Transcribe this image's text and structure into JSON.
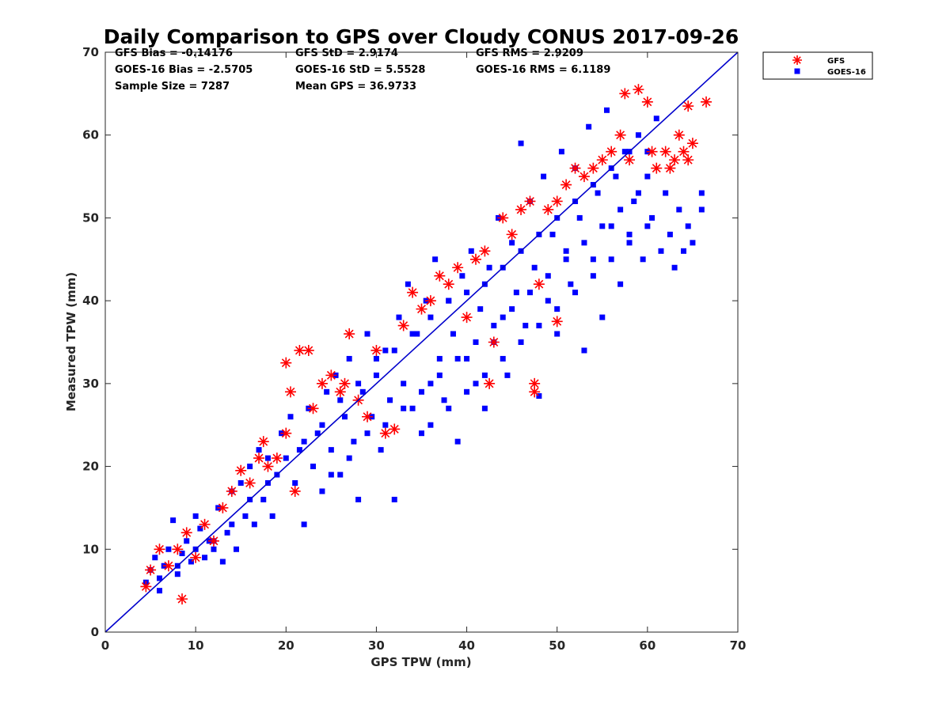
{
  "chart_data": {
    "type": "scatter",
    "title": "Daily Comparison to GPS over Cloudy CONUS 2017-09-26",
    "xlabel": "GPS TPW (mm)",
    "ylabel": "Measured TPW (mm)",
    "xlim": [
      0,
      70
    ],
    "ylim": [
      0,
      70
    ],
    "xticks": [
      "0",
      "10",
      "20",
      "30",
      "40",
      "50",
      "60",
      "70"
    ],
    "yticks": [
      "0",
      "10",
      "20",
      "30",
      "40",
      "50",
      "60",
      "70"
    ],
    "grid": false,
    "legend_position": "outside-top-right",
    "reference_line": {
      "from": [
        0,
        0
      ],
      "to": [
        70,
        70
      ],
      "color": "#0000cc"
    },
    "stats": [
      [
        "GFS Bias = -0.14176",
        "GFS StD = 2.9174",
        "GFS RMS = 2.9209"
      ],
      [
        "GOES-16 Bias = -2.5705",
        "GOES-16 StD = 5.5528",
        "GOES-16 RMS = 6.1189"
      ],
      [
        "Sample Size = 7287",
        "Mean GPS = 36.9733"
      ]
    ],
    "series": [
      {
        "name": "GOES-16",
        "marker": "square",
        "color": "#0000ff",
        "points": [
          [
            4.5,
            6
          ],
          [
            5,
            7.5
          ],
          [
            5.5,
            9
          ],
          [
            6,
            6.5
          ],
          [
            6.5,
            8
          ],
          [
            7,
            10
          ],
          [
            7.5,
            13.5
          ],
          [
            8,
            7
          ],
          [
            8.5,
            9.5
          ],
          [
            9,
            11
          ],
          [
            9.5,
            8.5
          ],
          [
            10,
            14
          ],
          [
            10.5,
            12.5
          ],
          [
            11,
            9
          ],
          [
            11.5,
            11
          ],
          [
            12,
            10
          ],
          [
            12.5,
            15
          ],
          [
            13,
            8.5
          ],
          [
            13.5,
            12
          ],
          [
            14,
            17
          ],
          [
            14.5,
            10
          ],
          [
            15,
            18
          ],
          [
            15.5,
            14
          ],
          [
            16,
            20
          ],
          [
            16.5,
            13
          ],
          [
            17,
            22
          ],
          [
            17.5,
            16
          ],
          [
            18,
            21
          ],
          [
            18.5,
            14
          ],
          [
            19,
            19
          ],
          [
            19.5,
            24
          ],
          [
            20,
            21
          ],
          [
            20.5,
            26
          ],
          [
            21,
            18
          ],
          [
            21.5,
            22
          ],
          [
            22,
            13
          ],
          [
            22.5,
            27
          ],
          [
            23,
            20
          ],
          [
            23.5,
            24
          ],
          [
            24,
            17
          ],
          [
            24.5,
            29
          ],
          [
            25,
            22
          ],
          [
            25.5,
            31
          ],
          [
            26,
            19
          ],
          [
            26.5,
            26
          ],
          [
            27,
            33
          ],
          [
            27.5,
            23
          ],
          [
            28,
            16
          ],
          [
            28.5,
            29
          ],
          [
            29,
            36
          ],
          [
            29.5,
            26
          ],
          [
            30,
            31
          ],
          [
            30.5,
            22
          ],
          [
            31,
            34
          ],
          [
            31.5,
            28
          ],
          [
            32,
            16
          ],
          [
            32.5,
            38
          ],
          [
            33,
            30
          ],
          [
            33.5,
            42
          ],
          [
            34,
            27
          ],
          [
            34.5,
            36
          ],
          [
            35,
            24
          ],
          [
            35.5,
            40
          ],
          [
            36,
            30
          ],
          [
            36.5,
            45
          ],
          [
            37,
            33
          ],
          [
            37.5,
            28
          ],
          [
            38,
            40
          ],
          [
            38.5,
            36
          ],
          [
            39,
            23
          ],
          [
            39.5,
            43
          ],
          [
            40,
            33
          ],
          [
            40.5,
            46
          ],
          [
            41,
            30
          ],
          [
            41.5,
            39
          ],
          [
            42,
            27
          ],
          [
            42.5,
            44
          ],
          [
            43,
            35
          ],
          [
            43.5,
            50
          ],
          [
            44,
            38
          ],
          [
            44.5,
            31
          ],
          [
            45,
            47
          ],
          [
            45.5,
            41
          ],
          [
            46,
            59
          ],
          [
            46.5,
            37
          ],
          [
            47,
            52
          ],
          [
            47.5,
            44
          ],
          [
            48,
            28.5
          ],
          [
            48.5,
            55
          ],
          [
            49,
            40
          ],
          [
            49.5,
            48
          ],
          [
            50,
            36
          ],
          [
            50.5,
            58
          ],
          [
            51,
            46
          ],
          [
            51.5,
            42
          ],
          [
            52,
            56
          ],
          [
            52.5,
            50
          ],
          [
            53,
            34
          ],
          [
            53.5,
            61
          ],
          [
            54,
            45
          ],
          [
            54.5,
            53
          ],
          [
            55,
            38
          ],
          [
            55.5,
            63
          ],
          [
            56,
            49
          ],
          [
            56.5,
            55
          ],
          [
            57,
            42
          ],
          [
            57.5,
            58
          ],
          [
            58,
            48
          ],
          [
            58.5,
            52
          ],
          [
            59,
            60
          ],
          [
            59.5,
            45
          ],
          [
            60,
            55
          ],
          [
            60.5,
            50
          ],
          [
            61,
            62
          ],
          [
            61.5,
            46
          ],
          [
            62,
            53
          ],
          [
            62.5,
            48
          ],
          [
            63,
            44
          ],
          [
            63.5,
            51
          ],
          [
            64,
            46
          ],
          [
            64.5,
            49
          ],
          [
            65,
            47
          ],
          [
            66,
            53
          ],
          [
            66,
            51
          ],
          [
            6,
            5
          ],
          [
            8,
            8
          ],
          [
            10,
            10
          ],
          [
            12,
            11
          ],
          [
            14,
            13
          ],
          [
            16,
            16
          ],
          [
            18,
            18
          ],
          [
            22,
            23
          ],
          [
            24,
            25
          ],
          [
            26,
            28
          ],
          [
            28,
            30
          ],
          [
            30,
            33
          ],
          [
            32,
            34
          ],
          [
            34,
            36
          ],
          [
            36,
            38
          ],
          [
            38,
            40
          ],
          [
            40,
            41
          ],
          [
            42,
            42
          ],
          [
            44,
            44
          ],
          [
            46,
            46
          ],
          [
            48,
            48
          ],
          [
            50,
            50
          ],
          [
            52,
            52
          ],
          [
            54,
            54
          ],
          [
            56,
            56
          ],
          [
            58,
            58
          ],
          [
            60,
            58
          ],
          [
            25,
            19
          ],
          [
            27,
            21
          ],
          [
            29,
            24
          ],
          [
            31,
            25
          ],
          [
            33,
            27
          ],
          [
            35,
            29
          ],
          [
            37,
            31
          ],
          [
            39,
            33
          ],
          [
            41,
            35
          ],
          [
            43,
            37
          ],
          [
            45,
            39
          ],
          [
            47,
            41
          ],
          [
            49,
            43
          ],
          [
            51,
            45
          ],
          [
            53,
            47
          ],
          [
            55,
            49
          ],
          [
            57,
            51
          ],
          [
            59,
            53
          ],
          [
            36,
            25
          ],
          [
            38,
            27
          ],
          [
            40,
            29
          ],
          [
            42,
            31
          ],
          [
            44,
            33
          ],
          [
            46,
            35
          ],
          [
            48,
            37
          ],
          [
            50,
            39
          ],
          [
            52,
            41
          ],
          [
            54,
            43
          ],
          [
            56,
            45
          ],
          [
            58,
            47
          ],
          [
            60,
            49
          ]
        ]
      },
      {
        "name": "GFS",
        "marker": "asterisk",
        "color": "#ff0000",
        "points": [
          [
            4.5,
            5.5
          ],
          [
            5,
            7.5
          ],
          [
            6,
            10
          ],
          [
            7,
            8
          ],
          [
            8,
            10
          ],
          [
            8.5,
            4
          ],
          [
            9,
            12
          ],
          [
            10,
            9
          ],
          [
            11,
            13
          ],
          [
            12,
            11
          ],
          [
            13,
            15
          ],
          [
            14,
            17
          ],
          [
            15,
            19.5
          ],
          [
            16,
            18
          ],
          [
            17,
            21
          ],
          [
            17.5,
            23
          ],
          [
            18,
            20
          ],
          [
            19,
            21
          ],
          [
            20,
            32.5
          ],
          [
            20.5,
            29
          ],
          [
            20,
            24
          ],
          [
            21,
            17
          ],
          [
            21.5,
            34
          ],
          [
            22.5,
            34
          ],
          [
            23,
            27
          ],
          [
            24,
            30
          ],
          [
            25,
            31
          ],
          [
            26,
            29
          ],
          [
            26.5,
            30
          ],
          [
            27,
            36
          ],
          [
            28,
            28
          ],
          [
            29,
            26
          ],
          [
            30,
            34
          ],
          [
            31,
            24
          ],
          [
            32,
            24.5
          ],
          [
            33,
            37
          ],
          [
            34,
            41
          ],
          [
            35,
            39
          ],
          [
            36,
            40
          ],
          [
            37,
            43
          ],
          [
            38,
            42
          ],
          [
            39,
            44
          ],
          [
            40,
            38
          ],
          [
            41,
            45
          ],
          [
            42,
            46
          ],
          [
            42.5,
            30
          ],
          [
            43,
            35
          ],
          [
            44,
            50
          ],
          [
            45,
            48
          ],
          [
            46,
            51
          ],
          [
            47,
            52
          ],
          [
            47.5,
            30
          ],
          [
            47.5,
            29
          ],
          [
            48,
            42
          ],
          [
            49,
            51
          ],
          [
            50,
            52
          ],
          [
            50,
            37.5
          ],
          [
            51,
            54
          ],
          [
            52,
            56
          ],
          [
            53,
            55
          ],
          [
            54,
            56
          ],
          [
            55,
            57
          ],
          [
            56,
            58
          ],
          [
            57,
            60
          ],
          [
            57.5,
            65
          ],
          [
            58,
            57
          ],
          [
            59,
            65.5
          ],
          [
            60,
            64
          ],
          [
            60.5,
            58
          ],
          [
            61,
            56
          ],
          [
            62,
            58
          ],
          [
            62.5,
            56
          ],
          [
            63,
            57
          ],
          [
            63.5,
            60
          ],
          [
            64,
            58
          ],
          [
            64.5,
            57
          ],
          [
            65,
            59
          ],
          [
            64.5,
            63.5
          ],
          [
            66.5,
            64
          ]
        ]
      }
    ]
  }
}
